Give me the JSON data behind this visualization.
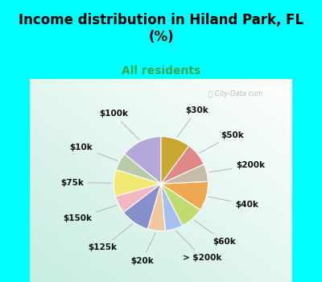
{
  "title": "Income distribution in Hiland Park, FL\n(%)",
  "subtitle": "All residents",
  "bg_cyan": "#00FFFF",
  "labels": [
    "$100k",
    "$10k",
    "$75k",
    "$150k",
    "$125k",
    "$20k",
    "> $200k",
    "$60k",
    "$40k",
    "$200k",
    "$50k",
    "$30k"
  ],
  "values": [
    14,
    6,
    9,
    6,
    10,
    6,
    6,
    8,
    10,
    6,
    8,
    10
  ],
  "colors": [
    "#b3a8d8",
    "#b8ccaa",
    "#f0e870",
    "#f4b8c0",
    "#8890cc",
    "#f0c8a0",
    "#a8c0f0",
    "#c0dc70",
    "#f0a850",
    "#c8bca8",
    "#e08888",
    "#c8a830"
  ],
  "title_fontsize": 12,
  "subtitle_fontsize": 10,
  "label_fontsize": 7.5,
  "watermark": "City-Data.com"
}
